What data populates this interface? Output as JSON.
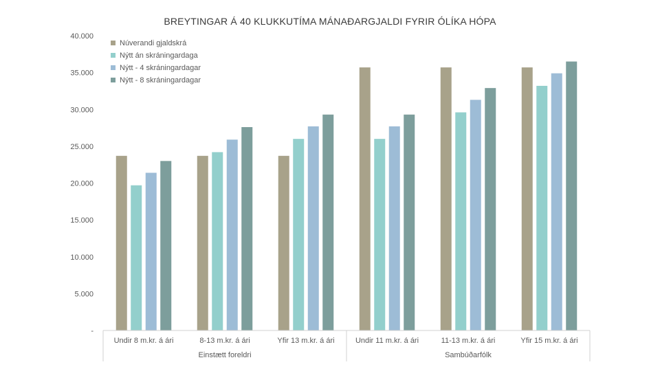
{
  "chart_data": {
    "type": "bar",
    "title": "BREYTINGAR Á 40 KLUKKUTÍMA MÁNAÐARGJALDI FYRIR ÓLÍKA HÓPA",
    "xlabel": "",
    "ylabel": "",
    "ylim": [
      0,
      40000
    ],
    "yticks": [
      "-",
      "5.000",
      "10.000",
      "15.000",
      "20.000",
      "25.000",
      "30.000",
      "35.000",
      "40.000"
    ],
    "categories": [
      "Undir 8 m.kr. á ári",
      "8-13 m.kr. á ári",
      "Yfir 13 m.kr. á ári",
      "Undir 11 m.kr. á ári",
      "11-13 m.kr. á ári",
      "Yfir 15 m.kr. á ári"
    ],
    "groups": [
      {
        "label": "Einstætt foreldri",
        "categories": [
          0,
          1,
          2
        ]
      },
      {
        "label": "Sambúðarfólk",
        "categories": [
          3,
          4,
          5
        ]
      }
    ],
    "series": [
      {
        "name": "Núverandi gjaldskrá",
        "color": "#a8a28a",
        "values": [
          23700,
          23700,
          23700,
          35700,
          35700,
          35700
        ]
      },
      {
        "name": "Nýtt án skráningardaga",
        "color": "#93cfcc",
        "values": [
          19700,
          24200,
          26000,
          26000,
          29600,
          33200
        ]
      },
      {
        "name": "Nýtt - 4 skráningardagar",
        "color": "#9dbcd6",
        "values": [
          21400,
          25900,
          27700,
          27700,
          31300,
          34900
        ]
      },
      {
        "name": "Nýtt - 8 skráningardagar",
        "color": "#7d9e9c",
        "values": [
          23000,
          27600,
          29300,
          29300,
          32900,
          36500
        ]
      }
    ],
    "grid": false,
    "legend_position": "top-left"
  }
}
